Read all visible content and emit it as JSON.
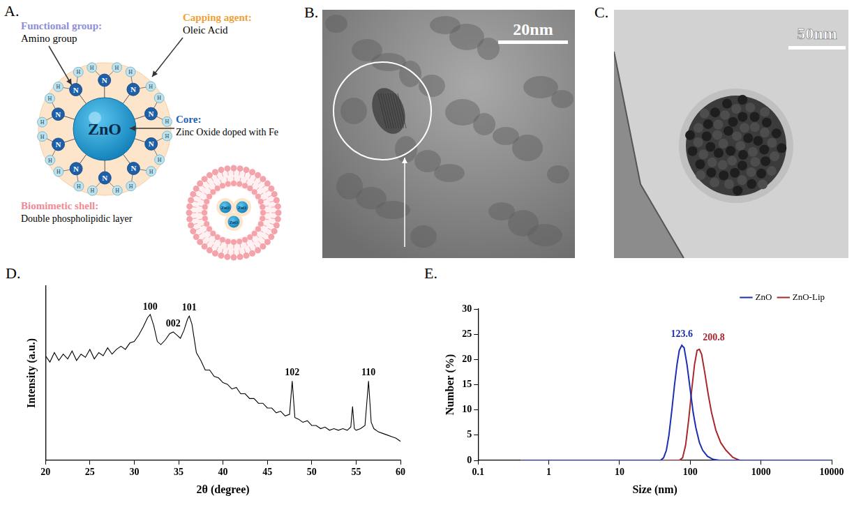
{
  "panels": {
    "A": {
      "letter": "A.",
      "functional_group": {
        "title": "Functional group:",
        "text": "Amino group"
      },
      "capping_agent": {
        "title": "Capping agent:",
        "text": "Oleic Acid"
      },
      "core": {
        "title": "Core:",
        "text": "Zinc Oxide doped with Fe",
        "label": "ZnO"
      },
      "biomimetic_shell": {
        "title": "Biomimetic shell:",
        "text": "Double phospholipidic layer"
      },
      "amino_atoms": {
        "nitrogen": "N",
        "hydrogen": "H"
      }
    },
    "B": {
      "letter": "B.",
      "scale_bar": "20nm"
    },
    "C": {
      "letter": "C.",
      "scale_bar": "50nm"
    }
  },
  "chart_data": [
    {
      "panel": "D.",
      "type": "line",
      "x_label": "2θ (degree)",
      "y_label": "Intensity (a.u.)",
      "x": [
        20,
        20.5,
        21,
        21.5,
        22,
        22.5,
        23,
        23.5,
        24,
        24.5,
        25,
        25.5,
        26,
        26.5,
        27,
        27.5,
        28,
        28.5,
        29,
        29.5,
        30,
        30.5,
        31,
        31.5,
        31.8,
        32.2,
        32.6,
        33,
        33.5,
        34,
        34.4,
        34.8,
        35.2,
        35.6,
        36,
        36.2,
        36.5,
        37,
        37.5,
        38,
        38.5,
        39,
        39.5,
        40,
        40.5,
        41,
        41.5,
        42,
        42.5,
        43,
        43.5,
        44,
        44.5,
        45,
        45.5,
        46,
        46.5,
        47,
        47.5,
        47.8,
        48.1,
        48.5,
        49,
        49.5,
        50,
        50.5,
        51,
        51.5,
        52,
        52.5,
        53,
        53.5,
        54,
        54.4,
        54.6,
        54.8,
        55,
        55.5,
        56,
        56.4,
        56.7,
        57,
        57.5,
        58,
        58.5,
        59,
        59.5,
        60
      ],
      "values": [
        66,
        62,
        68,
        63,
        67,
        64,
        69,
        63,
        67,
        65,
        70,
        64,
        68,
        66,
        71,
        67,
        70,
        72,
        70,
        74,
        75,
        79,
        84,
        90,
        92,
        85,
        75,
        73,
        76,
        80,
        81,
        79,
        77,
        82,
        89,
        91,
        86,
        68,
        63,
        57,
        57,
        53,
        52,
        49,
        48,
        45,
        46,
        42,
        42,
        39,
        39,
        36,
        36,
        33,
        33,
        30,
        31,
        28,
        29,
        50,
        27,
        26,
        24,
        25,
        22,
        22,
        20,
        21,
        19,
        20,
        19,
        20,
        19,
        21,
        34,
        20,
        19,
        20,
        22,
        50,
        24,
        20,
        18,
        17,
        16,
        15,
        14,
        12
      ],
      "color": "#000000",
      "xlim": [
        20,
        60
      ],
      "xticks": [
        20,
        25,
        30,
        35,
        40,
        45,
        50,
        55,
        60
      ],
      "ylim": [
        0,
        110
      ],
      "grid": false,
      "tick_labels": "x",
      "annotations": [
        {
          "text": "100",
          "x": 31.8,
          "y": 93.5
        },
        {
          "text": "002",
          "x": 34.4,
          "y": 83
        },
        {
          "text": "101",
          "x": 36.2,
          "y": 93
        },
        {
          "text": "102",
          "x": 47.8,
          "y": 52
        },
        {
          "text": "110",
          "x": 56.4,
          "y": 52
        }
      ]
    },
    {
      "panel": "E.",
      "type": "line",
      "x_label": "Size (nm)",
      "y_label": "Number (%)",
      "log": "x",
      "series": [
        {
          "name": "ZnO",
          "color": "#1a2fb0",
          "x": [
            0.4,
            10,
            38,
            42,
            46,
            50,
            55,
            60,
            65,
            70,
            76,
            82,
            90,
            100,
            110,
            120,
            135,
            150,
            175,
            210,
            260,
            1000,
            10000
          ],
          "values": [
            0,
            0,
            0,
            0.5,
            2,
            5,
            10,
            15,
            19,
            21.8,
            22.8,
            22.3,
            19,
            14,
            9.5,
            6.5,
            3.5,
            2,
            0.8,
            0.2,
            0,
            0,
            0
          ]
        },
        {
          "name": "ZnO-Lip",
          "color": "#a8282c",
          "x": [
            0.4,
            10,
            60,
            70,
            78,
            86,
            95,
            105,
            115,
            125,
            135,
            145,
            160,
            180,
            200,
            230,
            270,
            320,
            400,
            500,
            1000,
            10000
          ],
          "values": [
            0,
            0,
            0,
            0,
            0.5,
            3,
            8,
            14,
            19,
            21.8,
            22,
            21,
            17.5,
            13,
            9.5,
            6,
            3.5,
            2,
            0.6,
            0,
            0,
            0
          ]
        }
      ],
      "xlim": [
        0.1,
        10000
      ],
      "xticks": [
        0.1,
        1,
        10,
        100,
        1000,
        10000
      ],
      "ylim": [
        0,
        30
      ],
      "yticks": [
        0,
        5,
        10,
        15,
        20,
        25,
        30
      ],
      "grid": false,
      "legend": "top right",
      "annotations": [
        {
          "text": "123.6",
          "x": 76,
          "y": 24,
          "color": "#1a2fb0"
        },
        {
          "text": "200.8",
          "x": 215,
          "y": 23.3,
          "color": "#a8282c"
        }
      ]
    }
  ]
}
